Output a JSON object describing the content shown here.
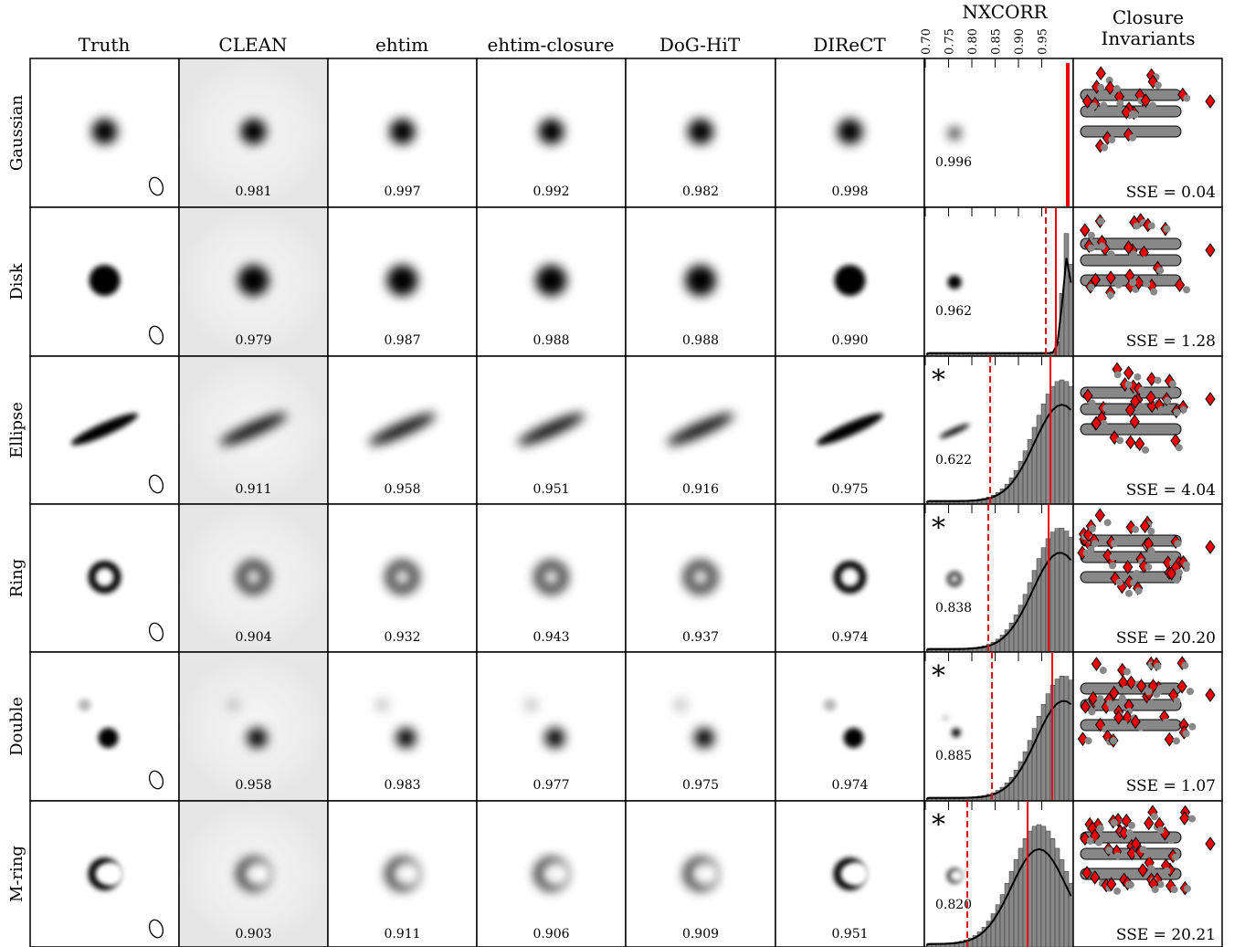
{
  "columns": [
    "Truth",
    "CLEAN",
    "ehtim",
    "ehtim-closure",
    "DoG-HiT",
    "DIReCT"
  ],
  "nxcorr_header": "NXCORR",
  "nxcorr_ticks": [
    "0.70",
    "0.75",
    "0.80",
    "0.85",
    "0.90",
    "0.95"
  ],
  "closure_header": [
    "Closure",
    "Invariants"
  ],
  "rows": [
    {
      "label": "Gaussian",
      "scores": [
        "0.981",
        "0.997",
        "0.992",
        "0.982",
        "0.998"
      ],
      "nxcorr": "0.996",
      "sse": "SSE = 0.04"
    },
    {
      "label": "Disk",
      "scores": [
        "0.979",
        "0.987",
        "0.988",
        "0.988",
        "0.990"
      ],
      "nxcorr": "0.962",
      "sse": "SSE = 1.28"
    },
    {
      "label": "Ellipse",
      "scores": [
        "0.911",
        "0.958",
        "0.951",
        "0.916",
        "0.975"
      ],
      "nxcorr": "0.622",
      "marker": "*",
      "sse": "SSE = 4.04"
    },
    {
      "label": "Ring",
      "scores": [
        "0.904",
        "0.932",
        "0.943",
        "0.937",
        "0.974"
      ],
      "nxcorr": "0.838",
      "marker": "*",
      "sse": "SSE = 20.20"
    },
    {
      "label": "Double",
      "scores": [
        "0.958",
        "0.983",
        "0.977",
        "0.975",
        "0.974"
      ],
      "nxcorr": "0.885",
      "marker": "*",
      "sse": "SSE = 1.07"
    },
    {
      "label": "M-ring",
      "scores": [
        "0.903",
        "0.911",
        "0.906",
        "0.909",
        "0.951"
      ],
      "nxcorr": "0.820",
      "marker": "*",
      "sse": "SSE = 20.21"
    }
  ]
}
